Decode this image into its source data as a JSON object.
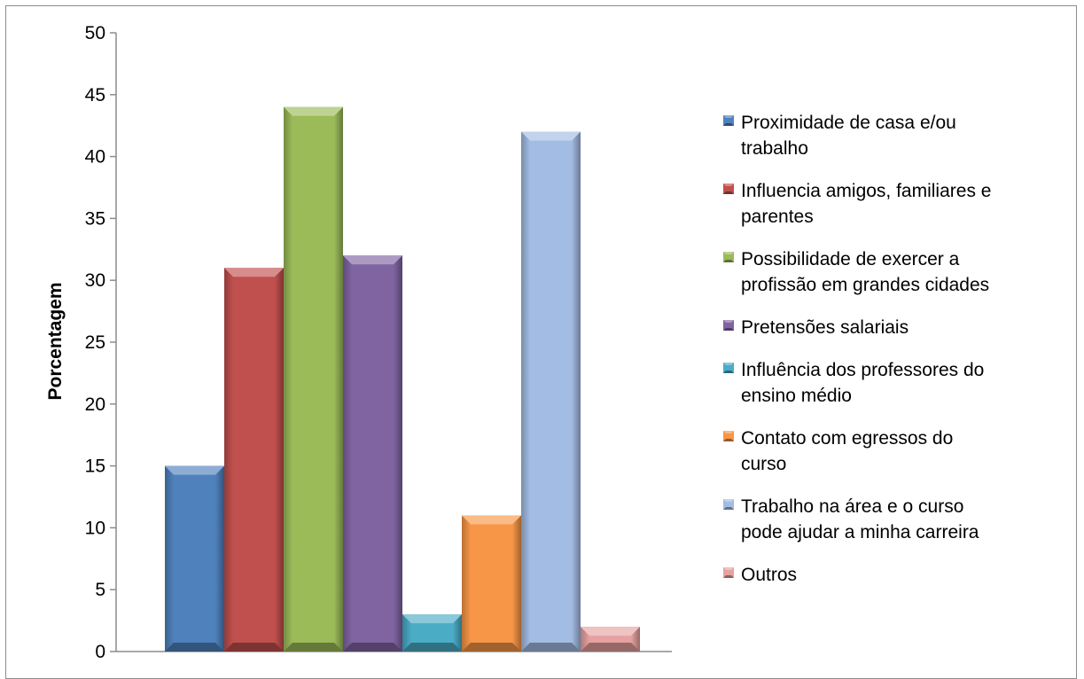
{
  "chart_data": {
    "type": "bar",
    "title": "",
    "xlabel": "",
    "ylabel": "Porcentagem",
    "ylim": [
      0,
      50
    ],
    "yticks": [
      0,
      5,
      10,
      15,
      20,
      25,
      30,
      35,
      40,
      45,
      50
    ],
    "grid": false,
    "legend_position": "right",
    "series": [
      {
        "name": "Proximidade de casa e/ou trabalho",
        "value": 15,
        "color": "#4f81bd",
        "legend_lines": [
          "Proximidade de casa e/ou",
          "trabalho"
        ]
      },
      {
        "name": "Influencia amigos, familiares e parentes",
        "value": 31,
        "color": "#c0504d",
        "legend_lines": [
          "Influencia amigos, familiares e",
          "parentes"
        ]
      },
      {
        "name": "Possibilidade de exercer a profissão em grandes cidades",
        "value": 44,
        "color": "#9bbb59",
        "legend_lines": [
          "Possibilidade de exercer a",
          "profissão em grandes cidades"
        ]
      },
      {
        "name": "Pretensões salariais",
        "value": 32,
        "color": "#8064a2",
        "legend_lines": [
          "Pretensões salariais"
        ]
      },
      {
        "name": "Influência dos professores do ensino médio",
        "value": 3,
        "color": "#4bacc6",
        "legend_lines": [
          "Influência dos professores do",
          "ensino médio"
        ]
      },
      {
        "name": "Contato com egressos do curso",
        "value": 11,
        "color": "#f79646",
        "legend_lines": [
          "Contato com egressos do",
          "curso"
        ]
      },
      {
        "name": "Trabalho na área e o curso pode ajudar a minha carreira",
        "value": 42,
        "color": "#a3bce3",
        "legend_lines": [
          "Trabalho na área e o curso",
          "pode ajudar a minha carreira"
        ]
      },
      {
        "name": "Outros",
        "value": 2,
        "color": "#e6a2a0",
        "legend_lines": [
          "Outros"
        ]
      }
    ]
  }
}
